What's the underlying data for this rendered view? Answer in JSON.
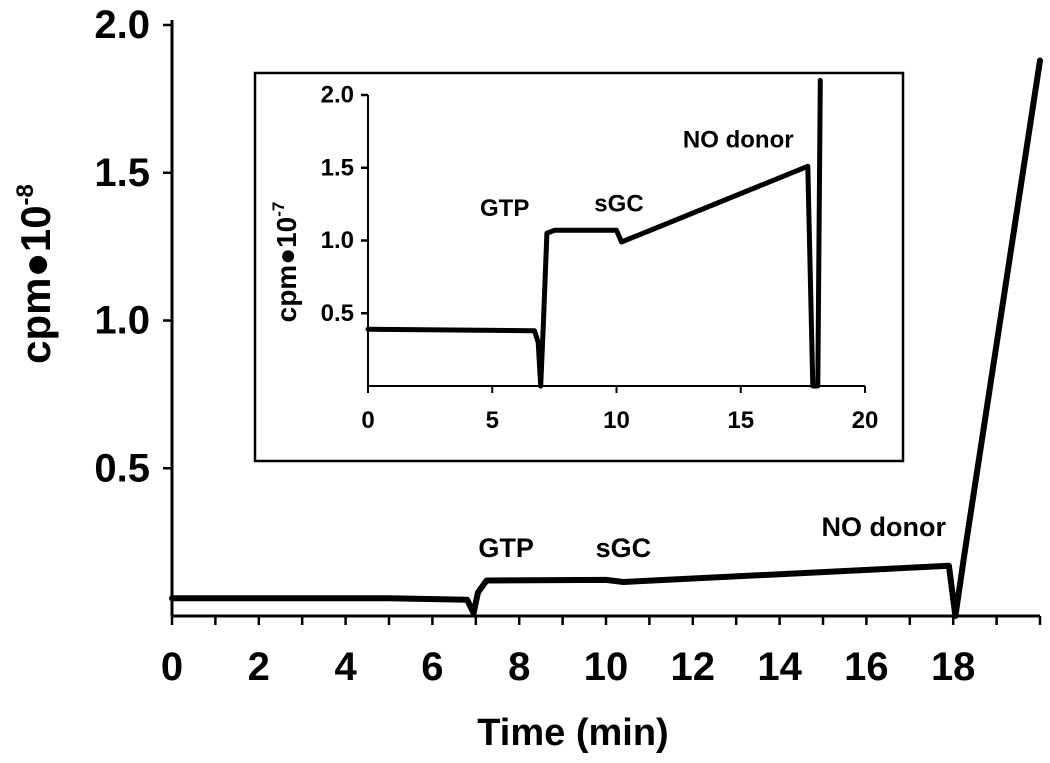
{
  "chart_data": [
    {
      "id": "main",
      "type": "line",
      "xlabel": "Time (min)",
      "ylabel": {
        "base": "cpm●10",
        "exponent": "-8"
      },
      "xlim": [
        0,
        20
      ],
      "ylim": [
        0,
        2.0
      ],
      "x_ticks": [
        0,
        2,
        4,
        6,
        8,
        10,
        12,
        14,
        16,
        18
      ],
      "x_tick_labels": [
        "0",
        "2",
        "4",
        "6",
        "8",
        "10",
        "12",
        "14",
        "16",
        "18"
      ],
      "y_ticks": [
        0.5,
        1.0,
        1.5,
        2.0
      ],
      "y_tick_labels": [
        "0.5",
        "1.0",
        "1.5",
        "2.0"
      ],
      "grid": false,
      "series": [
        {
          "color": "#000000",
          "points": [
            [
              0,
              0.06
            ],
            [
              5.0,
              0.06
            ],
            [
              6.8,
              0.055
            ],
            [
              6.95,
              0.01
            ],
            [
              7.05,
              0.08
            ],
            [
              7.25,
              0.12
            ],
            [
              10.0,
              0.122
            ],
            [
              10.4,
              0.115
            ],
            [
              17.9,
              0.17
            ],
            [
              18.05,
              0.0
            ],
            [
              18.25,
              0.2
            ],
            [
              20,
              1.88
            ]
          ]
        }
      ],
      "annotations": [
        {
          "text": "GTP",
          "x": 7.7,
          "y": 0.2
        },
        {
          "text": "sGC",
          "x": 10.4,
          "y": 0.2
        },
        {
          "text": "NO donor",
          "x": 16.4,
          "y": 0.27
        }
      ]
    },
    {
      "id": "inset",
      "type": "line",
      "ylabel": {
        "base": "cpm●10",
        "exponent": "-7"
      },
      "xlim": [
        0,
        20
      ],
      "ylim": [
        0,
        2.0
      ],
      "x_ticks": [
        0,
        5,
        10,
        15,
        20
      ],
      "x_tick_labels": [
        "0",
        "5",
        "10",
        "15",
        "20"
      ],
      "y_ticks": [
        0.5,
        1.0,
        1.5,
        2.0
      ],
      "y_tick_labels": [
        "0.5",
        "1.0",
        "1.5",
        "2.0"
      ],
      "grid": false,
      "series": [
        {
          "color": "#000000",
          "points": [
            [
              0,
              0.39
            ],
            [
              6.7,
              0.38
            ],
            [
              6.85,
              0.3
            ],
            [
              6.95,
              0.0
            ],
            [
              7.05,
              0.4
            ],
            [
              7.2,
              1.05
            ],
            [
              7.5,
              1.07
            ],
            [
              10.0,
              1.07
            ],
            [
              10.2,
              0.99
            ],
            [
              17.7,
              1.51
            ],
            [
              17.9,
              0.0
            ],
            [
              18.1,
              0.0
            ],
            [
              18.2,
              2.1
            ]
          ]
        }
      ],
      "annotations": [
        {
          "text": "GTP",
          "x": 5.5,
          "y": 1.17
        },
        {
          "text": "sGC",
          "x": 10.1,
          "y": 1.2
        },
        {
          "text": "NO donor",
          "x": 14.9,
          "y": 1.64
        }
      ]
    }
  ]
}
